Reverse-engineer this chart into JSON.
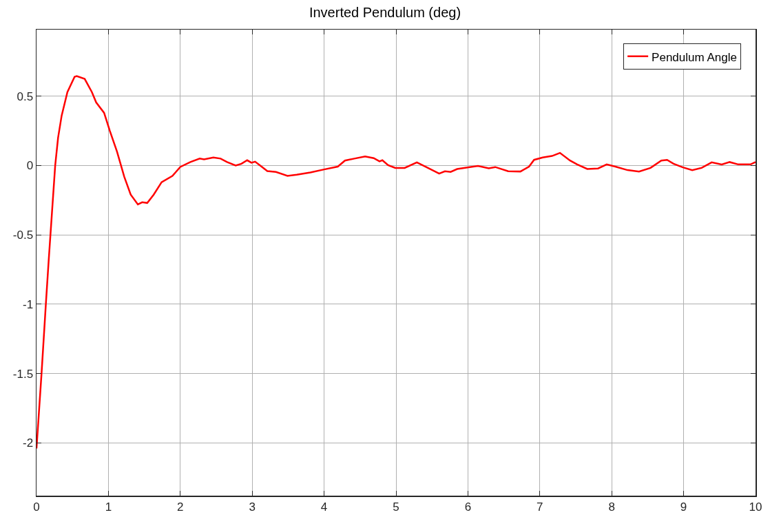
{
  "chart_data": {
    "type": "line",
    "title": "Inverted Pendulum (deg)",
    "xlim": [
      0,
      10
    ],
    "xticks": [
      0,
      1,
      2,
      3,
      4,
      5,
      6,
      7,
      8,
      9,
      10
    ],
    "ylim": [
      -2.38,
      0.98
    ],
    "yticks": [
      -2,
      -1.5,
      -1,
      -0.5,
      0,
      0.5
    ],
    "grid": true,
    "legend": "top right",
    "line_style": "solid",
    "series": [
      {
        "name": "Pendulum Angle",
        "color": "#ff0000",
        "x": [
          0,
          0.07,
          0.13,
          0.17,
          0.26,
          0.3,
          0.35,
          0.43,
          0.53,
          0.56,
          0.67,
          0.77,
          0.83,
          0.94,
          1.02,
          1.12,
          1.22,
          1.31,
          1.41,
          1.47,
          1.54,
          1.63,
          1.74,
          1.89,
          2.0,
          2.14,
          2.27,
          2.33,
          2.46,
          2.56,
          2.65,
          2.77,
          2.85,
          2.93,
          2.99,
          3.04,
          3.13,
          3.21,
          3.33,
          3.49,
          3.62,
          3.81,
          4.0,
          4.19,
          4.29,
          4.42,
          4.57,
          4.69,
          4.77,
          4.81,
          4.89,
          4.99,
          5.12,
          5.29,
          5.41,
          5.6,
          5.68,
          5.76,
          5.85,
          6.01,
          6.14,
          6.29,
          6.38,
          6.56,
          6.73,
          6.85,
          6.92,
          7.04,
          7.17,
          7.28,
          7.42,
          7.52,
          7.66,
          7.81,
          7.93,
          8.05,
          8.22,
          8.38,
          8.54,
          8.69,
          8.77,
          8.86,
          8.99,
          9.12,
          9.25,
          9.39,
          9.53,
          9.64,
          9.76,
          9.93,
          10.0
        ],
        "values": [
          -2.04,
          -1.5,
          -1.0,
          -0.68,
          0.0,
          0.2,
          0.36,
          0.53,
          0.64,
          0.645,
          0.625,
          0.53,
          0.455,
          0.38,
          0.25,
          0.1,
          -0.08,
          -0.21,
          -0.28,
          -0.265,
          -0.27,
          -0.21,
          -0.12,
          -0.075,
          -0.01,
          0.025,
          0.05,
          0.045,
          0.058,
          0.05,
          0.025,
          0.0,
          0.013,
          0.038,
          0.02,
          0.028,
          -0.008,
          -0.04,
          -0.046,
          -0.074,
          -0.066,
          -0.05,
          -0.028,
          -0.008,
          0.036,
          0.05,
          0.066,
          0.053,
          0.03,
          0.038,
          0.003,
          -0.017,
          -0.017,
          0.023,
          -0.008,
          -0.058,
          -0.041,
          -0.046,
          -0.025,
          -0.013,
          -0.003,
          -0.02,
          -0.011,
          -0.041,
          -0.043,
          -0.008,
          0.041,
          0.058,
          0.069,
          0.091,
          0.036,
          0.008,
          -0.025,
          -0.021,
          0.008,
          -0.008,
          -0.033,
          -0.043,
          -0.017,
          0.036,
          0.041,
          0.013,
          -0.013,
          -0.033,
          -0.017,
          0.023,
          0.008,
          0.025,
          0.008,
          0.008,
          0.025
        ]
      }
    ]
  }
}
